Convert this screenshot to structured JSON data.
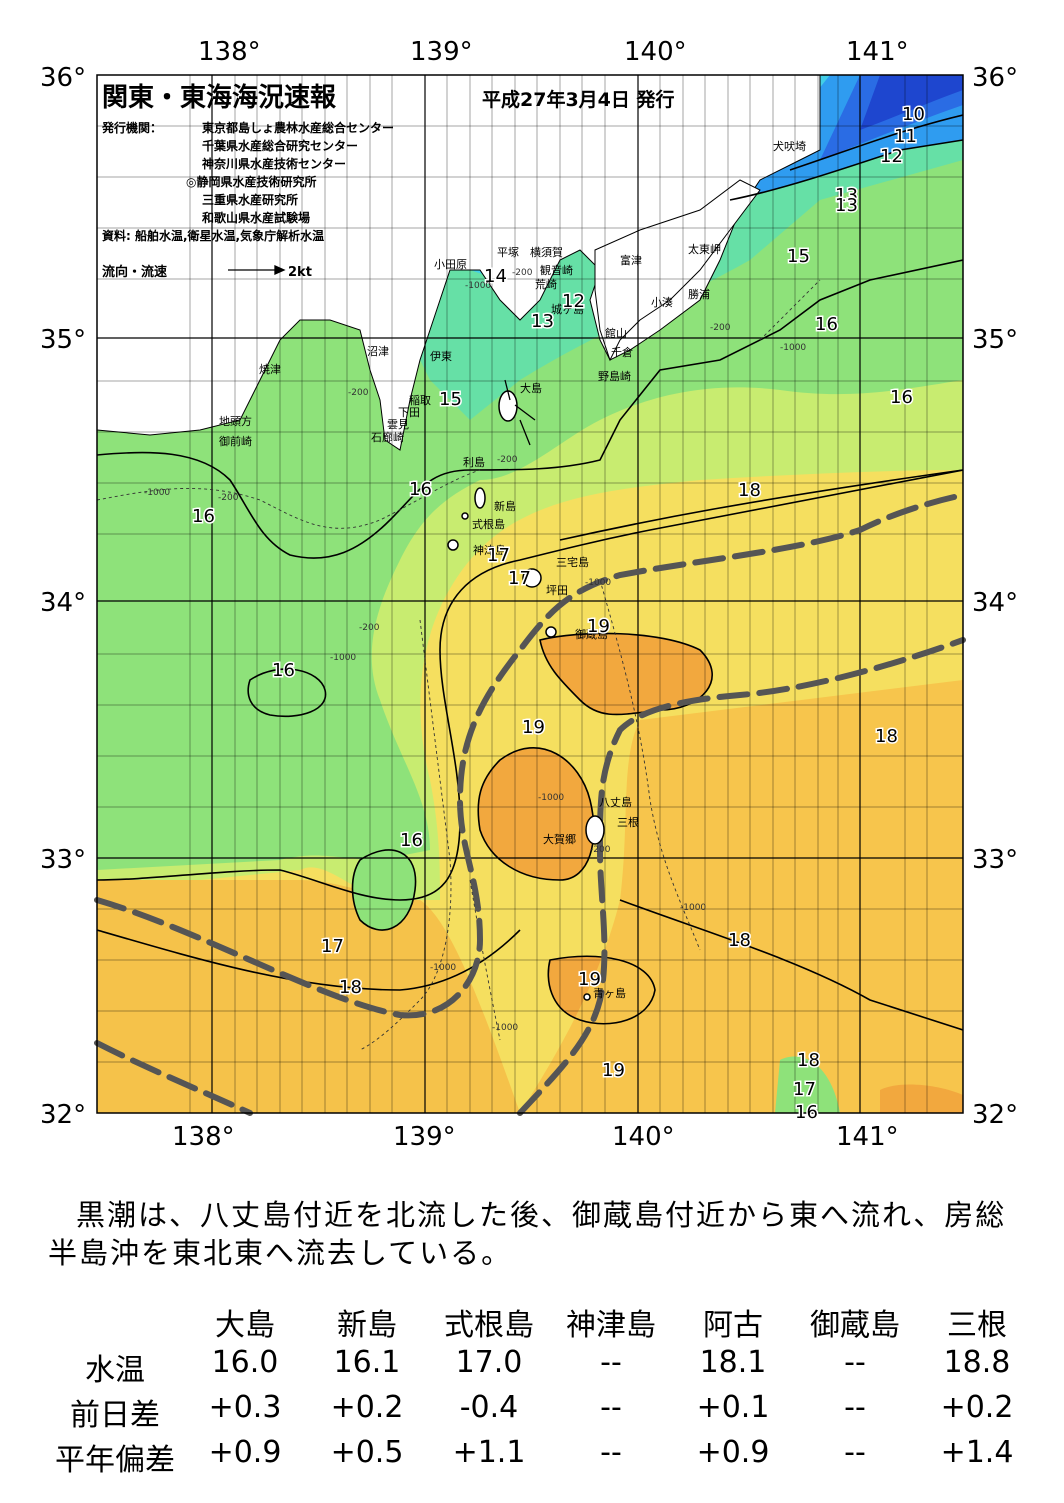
{
  "map": {
    "title": "関東・東海海況速報",
    "date": "平成27年3月4日 発行",
    "publishers_label": "発行機関：",
    "publishers": [
      "東京都島しょ農林水産総合センター",
      "千葉県水産総合研究センター",
      "神奈川県水産技術センター",
      "◎静岡県水産技術研究所",
      "三重県水産研究所",
      "和歌山県水産試験場"
    ],
    "source": "資料: 船舶水温,衛星水温,気象庁解析水温",
    "flow_legend": "流向・流速",
    "flow_unit": "2kt",
    "lon_labels": [
      "138°",
      "139°",
      "140°",
      "141°"
    ],
    "lat_labels": [
      "36°",
      "35°",
      "34°",
      "33°",
      "32°"
    ],
    "places": [
      "犬吠埼",
      "太東岬",
      "勝浦",
      "小湊",
      "富津",
      "観音崎",
      "横須賀",
      "平塚",
      "小田原",
      "荒崎",
      "城ヶ島",
      "館山",
      "千倉",
      "野島崎",
      "大島",
      "利島",
      "新島",
      "式根島",
      "神津島",
      "三宅島",
      "坪田",
      "御蔵島",
      "八丈島",
      "三根",
      "大賀郷",
      "青ヶ島",
      "沼津",
      "伊東",
      "稲取",
      "下田",
      "雲見",
      "石廊崎",
      "焼津",
      "地頭方",
      "御前崎"
    ],
    "contour_labels": [
      "10",
      "11",
      "12",
      "13",
      "14",
      "15",
      "16",
      "17",
      "18",
      "19"
    ],
    "isobath_labels": [
      "-200",
      "-1000"
    ],
    "colors": {
      "t10": "#1a3fd0",
      "t11": "#2463e0",
      "t12": "#2f8ef0",
      "t13": "#3fb4f5",
      "t14": "#48d8f0",
      "t15": "#5fe8c0",
      "t16": "#7ee07a",
      "t17": "#b6ea6a",
      "t18": "#f0e868",
      "t19": "#f5c24a",
      "t20": "#f2a53a",
      "land": "#ffffff",
      "kuroshio_axis": "#555555"
    }
  },
  "summary": "黒潮は、八丈島付近を北流した後、御蔵島付近から東へ流れ、房総半島沖を東北東へ流去している。",
  "table": {
    "columns": [
      "大島",
      "新島",
      "式根島",
      "神津島",
      "阿古",
      "御蔵島",
      "三根"
    ],
    "rows": [
      {
        "label": "水温",
        "values": [
          "16.0",
          "16.1",
          "17.0",
          "--",
          "18.1",
          "--",
          "18.8"
        ]
      },
      {
        "label": "前日差",
        "values": [
          "+0.3",
          "+0.2",
          "-0.4",
          "--",
          "+0.1",
          "--",
          "+0.2"
        ]
      },
      {
        "label": "平年偏差",
        "values": [
          "+0.9",
          "+0.5",
          "+1.1",
          "--",
          "+0.9",
          "--",
          "+1.4"
        ]
      }
    ]
  }
}
